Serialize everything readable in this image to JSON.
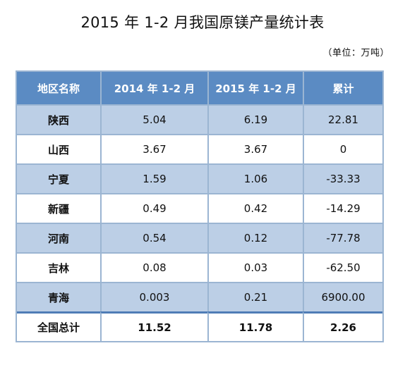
{
  "title": "2015 年 1-2 月我国原镁产量统计表",
  "unit": "（单位：万吨）",
  "header": {
    "region": "地区名称",
    "y2014": "2014 年 1-2 月",
    "y2015": "2015 年 1-2 月",
    "cumulative": "累计"
  },
  "rows": [
    {
      "region": "陕西",
      "y2014": "5.04",
      "y2015": "6.19",
      "cumulative": "22.81"
    },
    {
      "region": "山西",
      "y2014": "3.67",
      "y2015": "3.67",
      "cumulative": "0"
    },
    {
      "region": "宁夏",
      "y2014": "1.59",
      "y2015": "1.06",
      "cumulative": "-33.33"
    },
    {
      "region": "新疆",
      "y2014": "0.49",
      "y2015": "0.42",
      "cumulative": "-14.29"
    },
    {
      "region": "河南",
      "y2014": "0.54",
      "y2015": "0.12",
      "cumulative": "-77.78"
    },
    {
      "region": "吉林",
      "y2014": "0.08",
      "y2015": "0.03",
      "cumulative": "-62.50"
    },
    {
      "region": "青海",
      "y2014": "0.003",
      "y2015": "0.21",
      "cumulative": "6900.00"
    }
  ],
  "total": {
    "region": "全国总计",
    "y2014": "11.52",
    "y2015": "11.78",
    "cumulative": "2.26"
  },
  "colors": {
    "header_bg": "#5b8bc3",
    "shaded_row_bg": "#bccfe6",
    "border": "#9bb5d2"
  }
}
